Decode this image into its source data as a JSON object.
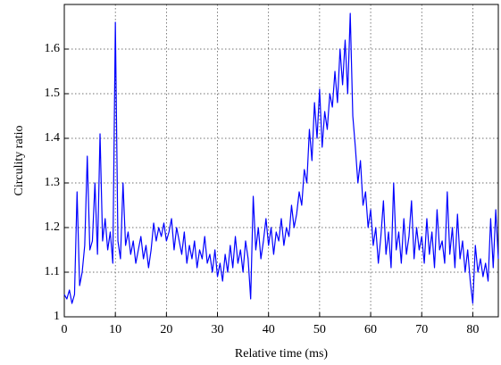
{
  "chart_data": {
    "type": "line",
    "x_label": "Relative time (ms)",
    "y_label": "Circulity ratio",
    "x": [
      0,
      0.5,
      1,
      1.5,
      2,
      2.5,
      3,
      3.5,
      4,
      4.5,
      5,
      5.5,
      6,
      6.5,
      7,
      7.5,
      8,
      8.5,
      9,
      9.5,
      10,
      10.5,
      11,
      11.5,
      12,
      12.5,
      13,
      13.5,
      14,
      14.5,
      15,
      15.5,
      16,
      16.5,
      17,
      17.5,
      18,
      18.5,
      19,
      19.5,
      20,
      20.5,
      21,
      21.5,
      22,
      22.5,
      23,
      23.5,
      24,
      24.5,
      25,
      25.5,
      26,
      26.5,
      27,
      27.5,
      28,
      28.5,
      29,
      29.5,
      30,
      30.5,
      31,
      31.5,
      32,
      32.5,
      33,
      33.5,
      34,
      34.5,
      35,
      35.5,
      36,
      36.5,
      37,
      37.5,
      38,
      38.5,
      39,
      39.5,
      40,
      40.5,
      41,
      41.5,
      42,
      42.5,
      43,
      43.5,
      44,
      44.5,
      45,
      45.5,
      46,
      46.5,
      47,
      47.5,
      48,
      48.5,
      49,
      49.5,
      50,
      50.5,
      51,
      51.5,
      52,
      52.5,
      53,
      53.5,
      54,
      54.5,
      55,
      55.5,
      56,
      56.5,
      57,
      57.5,
      58,
      58.5,
      59,
      59.5,
      60,
      60.5,
      61,
      61.5,
      62,
      62.5,
      63,
      63.5,
      64,
      64.5,
      65,
      65.5,
      66,
      66.5,
      67,
      67.5,
      68,
      68.5,
      69,
      69.5,
      70,
      70.5,
      71,
      71.5,
      72,
      72.5,
      73,
      73.5,
      74,
      74.5,
      75,
      75.5,
      76,
      76.5,
      77,
      77.5,
      78,
      78.5,
      79,
      79.5,
      80,
      80.5,
      81,
      81.5,
      82,
      82.5,
      83,
      83.5,
      84,
      84.5,
      85
    ],
    "series": [
      {
        "color": "#0000ff",
        "values": [
          1.05,
          1.04,
          1.06,
          1.03,
          1.05,
          1.28,
          1.07,
          1.1,
          1.16,
          1.36,
          1.15,
          1.17,
          1.3,
          1.14,
          1.41,
          1.17,
          1.22,
          1.15,
          1.19,
          1.12,
          1.66,
          1.17,
          1.13,
          1.3,
          1.16,
          1.19,
          1.14,
          1.17,
          1.12,
          1.15,
          1.18,
          1.13,
          1.16,
          1.11,
          1.15,
          1.21,
          1.17,
          1.2,
          1.18,
          1.21,
          1.17,
          1.19,
          1.22,
          1.15,
          1.2,
          1.17,
          1.14,
          1.19,
          1.12,
          1.16,
          1.13,
          1.17,
          1.11,
          1.15,
          1.13,
          1.18,
          1.12,
          1.14,
          1.1,
          1.15,
          1.09,
          1.12,
          1.08,
          1.14,
          1.1,
          1.16,
          1.11,
          1.18,
          1.12,
          1.15,
          1.1,
          1.17,
          1.13,
          1.04,
          1.27,
          1.15,
          1.2,
          1.13,
          1.17,
          1.22,
          1.16,
          1.2,
          1.14,
          1.19,
          1.17,
          1.22,
          1.16,
          1.2,
          1.18,
          1.25,
          1.2,
          1.23,
          1.28,
          1.25,
          1.33,
          1.3,
          1.42,
          1.35,
          1.48,
          1.4,
          1.51,
          1.38,
          1.46,
          1.42,
          1.5,
          1.47,
          1.55,
          1.48,
          1.6,
          1.52,
          1.62,
          1.5,
          1.68,
          1.45,
          1.38,
          1.3,
          1.35,
          1.25,
          1.28,
          1.2,
          1.24,
          1.16,
          1.2,
          1.12,
          1.18,
          1.26,
          1.14,
          1.19,
          1.11,
          1.3,
          1.15,
          1.19,
          1.12,
          1.22,
          1.14,
          1.18,
          1.26,
          1.13,
          1.2,
          1.15,
          1.18,
          1.12,
          1.22,
          1.14,
          1.19,
          1.11,
          1.24,
          1.15,
          1.17,
          1.12,
          1.28,
          1.14,
          1.2,
          1.11,
          1.23,
          1.13,
          1.17,
          1.1,
          1.15,
          1.08,
          1.03,
          1.16,
          1.1,
          1.13,
          1.09,
          1.12,
          1.08,
          1.22,
          1.11,
          1.24,
          1.13
        ]
      }
    ],
    "xlim": [
      0,
      85
    ],
    "xticks": [
      0,
      10,
      20,
      30,
      40,
      50,
      60,
      70,
      80
    ],
    "ylim": [
      1,
      1.7
    ],
    "yticks": [
      1,
      1.1,
      1.2,
      1.3,
      1.4,
      1.5,
      1.6
    ],
    "grid": true
  }
}
